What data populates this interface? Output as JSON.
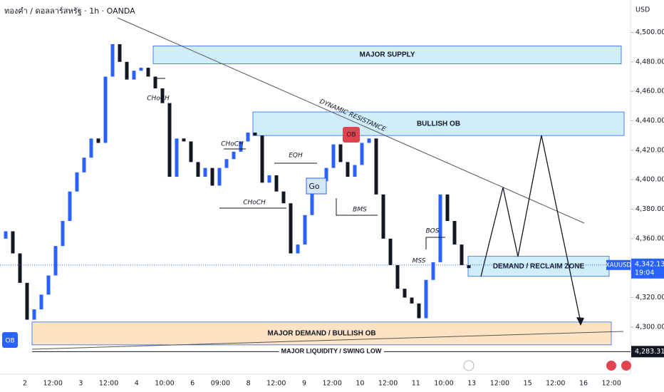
{
  "header": {
    "title": "ทองคำ / ดอลลาร์สหรัฐ · 1h · OANDA"
  },
  "chart_data": {
    "type": "candlestick",
    "currency": "USD",
    "up_color": "#2962ff",
    "down_color": "#131722",
    "open": [
      4360,
      4365,
      4350,
      4330,
      4305,
      4312,
      4322,
      4335,
      4355,
      4372,
      4392,
      4405,
      4415,
      4428,
      4425,
      4470,
      4492,
      4480,
      4468,
      4474,
      4476,
      4470,
      4462,
      4452,
      4402,
      4428,
      4426,
      4412,
      4402,
      4408,
      4396,
      4408,
      4414,
      4419,
      4426,
      4432,
      4430,
      4398,
      4403,
      4392,
      4384,
      4350,
      4356,
      4376,
      4392,
      4399,
      4408,
      4424,
      4412,
      4402,
      4410,
      4425,
      4428,
      4390,
      4360,
      4342,
      4326,
      4320,
      4316,
      4306,
      4332,
      4344,
      4390,
      4372,
      4356,
      4342
    ],
    "close": [
      4365,
      4350,
      4330,
      4305,
      4312,
      4322,
      4335,
      4355,
      4372,
      4392,
      4405,
      4415,
      4428,
      4425,
      4470,
      4492,
      4480,
      4468,
      4474,
      4476,
      4470,
      4462,
      4452,
      4402,
      4428,
      4426,
      4412,
      4402,
      4408,
      4396,
      4408,
      4414,
      4419,
      4426,
      4432,
      4430,
      4398,
      4403,
      4392,
      4384,
      4350,
      4356,
      4376,
      4392,
      4399,
      4408,
      4424,
      4412,
      4402,
      4410,
      4425,
      4428,
      4390,
      4360,
      4342,
      4326,
      4320,
      4316,
      4306,
      4332,
      4344,
      4390,
      4372,
      4356,
      4342,
      4340
    ],
    "ylim": [
      4268,
      4522
    ],
    "yticks": [
      {
        "value": 4500,
        "label": "4,500.000"
      },
      {
        "value": 4480,
        "label": "4,480.000"
      },
      {
        "value": 4460,
        "label": "4,460.000"
      },
      {
        "value": 4440,
        "label": "4,440.000"
      },
      {
        "value": 4420,
        "label": "4,420.000"
      },
      {
        "value": 4400,
        "label": "4,400.000"
      },
      {
        "value": 4380,
        "label": "4,380.000"
      },
      {
        "value": 4360,
        "label": "4,360.000"
      },
      {
        "value": 4340,
        "label": "4,340.000"
      },
      {
        "value": 4320,
        "label": "4,320.000"
      },
      {
        "value": 4300,
        "label": "4,300.000"
      }
    ],
    "xticks": [
      "2",
      "12:00",
      "3",
      "12:00",
      "4",
      "10:00",
      "6",
      "09:00",
      "8",
      "12:00",
      "9",
      "12:00",
      "10",
      "12:00",
      "11",
      "10:00",
      "13",
      "12:00",
      "15",
      "12:00",
      "16",
      "12:00"
    ],
    "zones": [
      {
        "label": "MAJOR SUPPLY",
        "top": 4490.8,
        "bottom": 4478.7,
        "color": "#cfeefa"
      },
      {
        "label": "BULLISH OB",
        "top": 4446,
        "bottom": 4430,
        "color": "#cfeefa"
      },
      {
        "label": "DEMAND / RECLAIM ZONE",
        "top": 4348,
        "bottom": 4334.4,
        "color": "#cfeefa"
      },
      {
        "label": "MAJOR DEMAND / BULLISH OB",
        "top": 4303.4,
        "bottom": 4287.9,
        "color": "#fde3c4"
      }
    ],
    "price_tag": {
      "symbol": "XAUUSD",
      "value": 4342.13,
      "label": "4,342.130",
      "countdown": "19:04"
    },
    "liquidity": {
      "label": "MAJOR LIQUIDITY / SWING LOW",
      "value": 4283.319,
      "value_label": "4,283.319"
    },
    "trendline_label": "DYNAMIC RESISTANCE",
    "annotations": [
      "CHoCH",
      "CHoCH",
      "EQH",
      "CHoCH",
      "BMS",
      "BOS",
      "MSS",
      "OB",
      "OB",
      "Go"
    ]
  }
}
